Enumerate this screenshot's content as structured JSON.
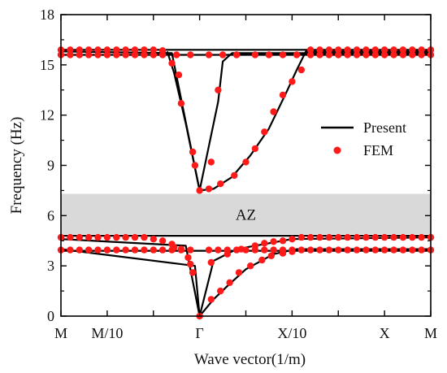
{
  "chart_data": {
    "type": "line",
    "xlabel": "Wave vector(1/m)",
    "ylabel": "Frequency (Hz)",
    "ylim": [
      0,
      18
    ],
    "xlim": [
      0,
      8
    ],
    "x_ticks": [
      {
        "pos": 0,
        "label": "M"
      },
      {
        "pos": 1,
        "label": "M/10"
      },
      {
        "pos": 2,
        "label": ""
      },
      {
        "pos": 3,
        "label": "Γ"
      },
      {
        "pos": 4,
        "label": ""
      },
      {
        "pos": 5,
        "label": "X/10"
      },
      {
        "pos": 6,
        "label": ""
      },
      {
        "pos": 7,
        "label": "X"
      },
      {
        "pos": 8,
        "label": "M"
      }
    ],
    "y_ticks": [
      0,
      3,
      6,
      9,
      12,
      15,
      18
    ],
    "band_gap": {
      "label": "AZ",
      "y0": 4.9,
      "y1": 7.3,
      "color": "#d9d9d9"
    },
    "legend": {
      "position": "right",
      "items": [
        {
          "label": "Present",
          "kind": "line",
          "color": "#000000"
        },
        {
          "label": "FEM",
          "kind": "marker",
          "color": "#ff1a1a"
        }
      ]
    },
    "series": [
      {
        "name": "Present",
        "kind": "line",
        "curves": [
          [
            [
              0,
              15.9
            ],
            [
              8,
              15.9
            ]
          ],
          [
            [
              0,
              15.6
            ],
            [
              8,
              15.6
            ]
          ],
          [
            [
              0,
              4.8
            ],
            [
              8,
              4.8
            ]
          ],
          [
            [
              0,
              3.9
            ],
            [
              8,
              3.9
            ]
          ],
          [
            [
              0,
              15.8
            ],
            [
              2.4,
              15.7
            ],
            [
              3.0,
              7.5
            ],
            [
              3.4,
              12.8
            ],
            [
              3.5,
              15.2
            ],
            [
              3.7,
              15.7
            ],
            [
              8,
              15.7
            ]
          ],
          [
            [
              2.3,
              15.8
            ],
            [
              2.45,
              14.5
            ],
            [
              2.7,
              11.5
            ],
            [
              3.0,
              7.5
            ],
            [
              3.3,
              7.6
            ],
            [
              3.7,
              8.3
            ],
            [
              4.1,
              9.6
            ],
            [
              4.5,
              11.2
            ],
            [
              4.9,
              13.5
            ],
            [
              5.1,
              14.7
            ],
            [
              5.3,
              15.8
            ],
            [
              8,
              15.8
            ]
          ],
          [
            [
              0,
              4.6
            ],
            [
              2.7,
              4.2
            ],
            [
              3.0,
              0
            ],
            [
              3.3,
              3.3
            ],
            [
              3.8,
              4.0
            ],
            [
              5.0,
              4.6
            ],
            [
              8,
              4.7
            ]
          ],
          [
            [
              0,
              4.0
            ],
            [
              2.9,
              3.0
            ],
            [
              3.0,
              0
            ],
            [
              3.3,
              1.0
            ],
            [
              3.6,
              1.8
            ],
            [
              4.0,
              2.8
            ],
            [
              4.6,
              3.7
            ],
            [
              5.1,
              4.0
            ],
            [
              8,
              4.0
            ]
          ]
        ]
      },
      {
        "name": "FEM",
        "kind": "scatter",
        "points": [
          [
            0,
            15.9
          ],
          [
            0.2,
            15.9
          ],
          [
            0.4,
            15.9
          ],
          [
            0.6,
            15.9
          ],
          [
            0.8,
            15.9
          ],
          [
            1.0,
            15.9
          ],
          [
            1.2,
            15.9
          ],
          [
            1.4,
            15.9
          ],
          [
            1.6,
            15.9
          ],
          [
            1.8,
            15.9
          ],
          [
            2.0,
            15.9
          ],
          [
            2.2,
            15.85
          ],
          [
            5.4,
            15.9
          ],
          [
            5.6,
            15.9
          ],
          [
            5.8,
            15.9
          ],
          [
            6.0,
            15.9
          ],
          [
            6.2,
            15.9
          ],
          [
            6.4,
            15.9
          ],
          [
            6.6,
            15.9
          ],
          [
            6.8,
            15.9
          ],
          [
            7.0,
            15.9
          ],
          [
            7.2,
            15.9
          ],
          [
            7.4,
            15.9
          ],
          [
            7.6,
            15.9
          ],
          [
            7.8,
            15.9
          ],
          [
            8.0,
            15.9
          ],
          [
            0,
            15.6
          ],
          [
            0.2,
            15.6
          ],
          [
            0.4,
            15.6
          ],
          [
            0.6,
            15.6
          ],
          [
            0.8,
            15.6
          ],
          [
            1.0,
            15.6
          ],
          [
            1.2,
            15.6
          ],
          [
            1.4,
            15.6
          ],
          [
            1.6,
            15.6
          ],
          [
            1.8,
            15.6
          ],
          [
            2.0,
            15.6
          ],
          [
            2.2,
            15.6
          ],
          [
            2.5,
            15.6
          ],
          [
            2.8,
            15.6
          ],
          [
            3.2,
            15.6
          ],
          [
            3.5,
            15.6
          ],
          [
            3.8,
            15.6
          ],
          [
            4.2,
            15.6
          ],
          [
            4.5,
            15.6
          ],
          [
            4.8,
            15.6
          ],
          [
            5.1,
            15.6
          ],
          [
            5.4,
            15.6
          ],
          [
            5.6,
            15.6
          ],
          [
            5.8,
            15.6
          ],
          [
            6.0,
            15.6
          ],
          [
            6.2,
            15.6
          ],
          [
            6.4,
            15.6
          ],
          [
            6.6,
            15.6
          ],
          [
            6.8,
            15.6
          ],
          [
            7.0,
            15.6
          ],
          [
            7.2,
            15.6
          ],
          [
            7.4,
            15.6
          ],
          [
            7.6,
            15.6
          ],
          [
            7.8,
            15.6
          ],
          [
            8.0,
            15.6
          ],
          [
            2.4,
            15.1
          ],
          [
            2.55,
            14.4
          ],
          [
            2.6,
            12.7
          ],
          [
            2.85,
            9.8
          ],
          [
            2.9,
            9.0
          ],
          [
            3.0,
            7.5
          ],
          [
            3.25,
            9.2
          ],
          [
            3.4,
            13.5
          ],
          [
            3.2,
            7.6
          ],
          [
            3.45,
            7.9
          ],
          [
            3.75,
            8.4
          ],
          [
            4.0,
            9.2
          ],
          [
            4.2,
            10.0
          ],
          [
            4.4,
            11.0
          ],
          [
            4.6,
            12.2
          ],
          [
            4.8,
            13.2
          ],
          [
            5.0,
            14.0
          ],
          [
            5.2,
            14.7
          ],
          [
            0,
            4.7
          ],
          [
            0.2,
            4.7
          ],
          [
            0.4,
            4.7
          ],
          [
            0.6,
            4.7
          ],
          [
            0.8,
            4.7
          ],
          [
            1.0,
            4.7
          ],
          [
            1.2,
            4.7
          ],
          [
            1.4,
            4.7
          ],
          [
            1.6,
            4.7
          ],
          [
            1.8,
            4.7
          ],
          [
            2.0,
            4.6
          ],
          [
            2.2,
            4.5
          ],
          [
            2.4,
            4.3
          ],
          [
            5.2,
            4.7
          ],
          [
            5.4,
            4.7
          ],
          [
            5.6,
            4.7
          ],
          [
            5.8,
            4.7
          ],
          [
            6.0,
            4.7
          ],
          [
            6.2,
            4.7
          ],
          [
            6.4,
            4.7
          ],
          [
            6.6,
            4.7
          ],
          [
            6.8,
            4.7
          ],
          [
            7.0,
            4.7
          ],
          [
            7.2,
            4.7
          ],
          [
            7.4,
            4.7
          ],
          [
            7.6,
            4.7
          ],
          [
            7.8,
            4.7
          ],
          [
            8.0,
            4.7
          ],
          [
            0,
            3.95
          ],
          [
            0.2,
            3.95
          ],
          [
            0.4,
            3.95
          ],
          [
            0.6,
            3.95
          ],
          [
            0.8,
            3.95
          ],
          [
            1.0,
            3.95
          ],
          [
            1.2,
            3.95
          ],
          [
            1.4,
            3.95
          ],
          [
            1.6,
            3.95
          ],
          [
            1.8,
            3.95
          ],
          [
            2.0,
            3.95
          ],
          [
            2.2,
            3.95
          ],
          [
            2.4,
            3.95
          ],
          [
            2.6,
            3.95
          ],
          [
            2.8,
            3.95
          ],
          [
            3.2,
            3.95
          ],
          [
            3.4,
            3.95
          ],
          [
            3.6,
            3.95
          ],
          [
            3.8,
            3.95
          ],
          [
            4.0,
            3.95
          ],
          [
            4.2,
            3.95
          ],
          [
            4.4,
            3.95
          ],
          [
            4.6,
            3.95
          ],
          [
            4.8,
            3.95
          ],
          [
            5.0,
            3.95
          ],
          [
            5.2,
            3.95
          ],
          [
            5.4,
            3.95
          ],
          [
            5.6,
            3.95
          ],
          [
            5.8,
            3.95
          ],
          [
            6.0,
            3.95
          ],
          [
            6.2,
            3.95
          ],
          [
            6.4,
            3.95
          ],
          [
            6.6,
            3.95
          ],
          [
            6.8,
            3.95
          ],
          [
            7.0,
            3.95
          ],
          [
            7.2,
            3.95
          ],
          [
            7.4,
            3.95
          ],
          [
            7.6,
            3.95
          ],
          [
            7.8,
            3.95
          ],
          [
            8.0,
            3.95
          ],
          [
            2.45,
            4.1
          ],
          [
            2.6,
            4.0
          ],
          [
            2.75,
            3.5
          ],
          [
            2.8,
            3.1
          ],
          [
            2.85,
            2.6
          ],
          [
            3.0,
            0.0
          ],
          [
            3.25,
            3.2
          ],
          [
            3.6,
            3.7
          ],
          [
            3.9,
            4.0
          ],
          [
            4.2,
            4.2
          ],
          [
            4.4,
            4.35
          ],
          [
            4.6,
            4.45
          ],
          [
            4.8,
            4.5
          ],
          [
            5.0,
            4.6
          ],
          [
            3.25,
            1.0
          ],
          [
            3.45,
            1.5
          ],
          [
            3.65,
            2.0
          ],
          [
            3.85,
            2.6
          ],
          [
            4.1,
            3.0
          ],
          [
            4.35,
            3.35
          ],
          [
            4.55,
            3.6
          ],
          [
            4.8,
            3.75
          ],
          [
            5.0,
            3.85
          ]
        ]
      }
    ]
  }
}
